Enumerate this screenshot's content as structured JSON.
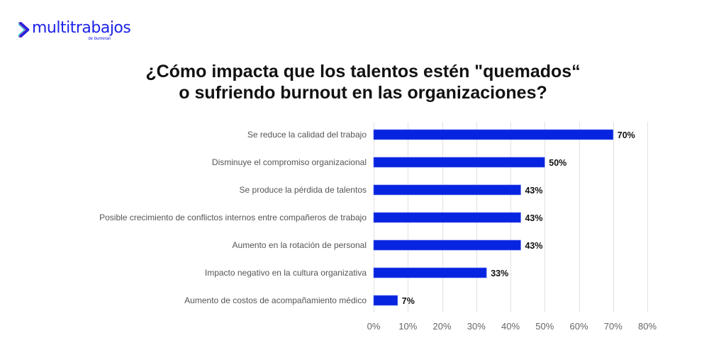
{
  "brand": {
    "name": "multitrabajos",
    "sub": "de bumeran",
    "colors": {
      "primary": "#1d22e8",
      "accent_pink": "#ff2a6d",
      "accent_cyan": "#27d3e8"
    }
  },
  "colors": {
    "bar": "#0724e0",
    "grid": "#e2e2e2"
  },
  "chart_data": {
    "type": "bar",
    "orientation": "horizontal",
    "title": "¿Cómo impacta que los talentos estén \"quemados“ o sufriendo burnout en las organizaciones?",
    "title_lines": [
      "¿Cómo impacta que los talentos estén \"quemados“",
      "o sufriendo burnout en las organizaciones?"
    ],
    "categories": [
      "Se reduce la calidad del trabajo",
      "Disminuye el compromiso organizacional",
      "Se produce la pérdida de talentos",
      "Posible crecimiento de conflictos internos entre compañeros de trabajo",
      "Aumento en la rotación de personal",
      "Impacto negativo en la cultura organizativa",
      "Aumento de costos de acompañamiento médico"
    ],
    "values": [
      70,
      50,
      43,
      43,
      43,
      33,
      7
    ],
    "value_labels": [
      "70%",
      "50%",
      "43%",
      "43%",
      "43%",
      "33%",
      "7%"
    ],
    "xlabel": "",
    "ylabel": "",
    "xlim": [
      0,
      80
    ],
    "x_ticks": [
      0,
      10,
      20,
      30,
      40,
      50,
      60,
      70,
      80
    ],
    "x_tick_labels": [
      "0%",
      "10%",
      "20%",
      "30%",
      "40%",
      "50%",
      "60%",
      "70%",
      "80%"
    ],
    "grid": "vertical",
    "legend": "none"
  }
}
